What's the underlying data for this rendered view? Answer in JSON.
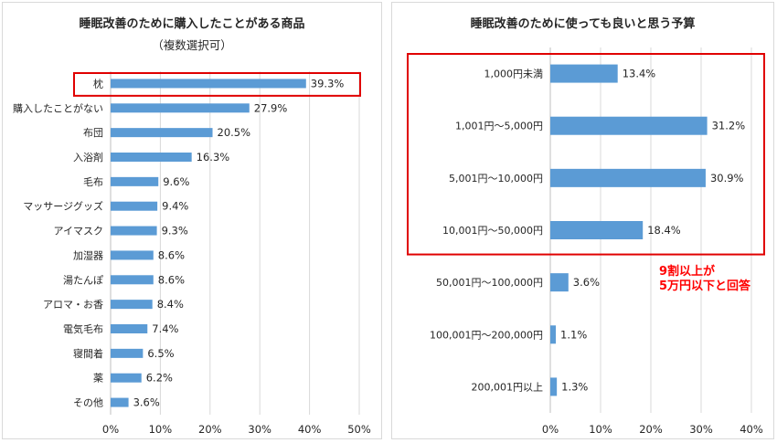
{
  "colors": {
    "bar": "#5b9bd5",
    "grid": "#d9d9d9",
    "highlight": "#e00000"
  },
  "chart_data": [
    {
      "type": "bar",
      "orientation": "horizontal",
      "title": "睡眠改善のために購入したことがある商品",
      "subtitle": "（複数選択可）",
      "categories": [
        "枕",
        "購入したことがない",
        "布団",
        "入浴剤",
        "毛布",
        "マッサージグッズ",
        "アイマスク",
        "加湿器",
        "湯たんぽ",
        "アロマ・お香",
        "電気毛布",
        "寝間着",
        "薬",
        "その他"
      ],
      "values": [
        39.3,
        27.9,
        20.5,
        16.3,
        9.6,
        9.4,
        9.3,
        8.6,
        8.6,
        8.4,
        7.4,
        6.5,
        6.2,
        3.6
      ],
      "value_labels": [
        "39.3%",
        "27.9%",
        "20.5%",
        "16.3%",
        "9.6%",
        "9.4%",
        "9.3%",
        "8.6%",
        "8.6%",
        "8.4%",
        "7.4%",
        "6.5%",
        "6.2%",
        "3.6%"
      ],
      "xlim": [
        0,
        50
      ],
      "xticks": [
        "0%",
        "10%",
        "20%",
        "30%",
        "40%",
        "50%"
      ],
      "grid": true,
      "highlighted_categories": [
        "枕"
      ]
    },
    {
      "type": "bar",
      "orientation": "horizontal",
      "title": "睡眠改善のために使っても良いと思う予算",
      "categories": [
        "1,000円未満",
        "1,001円～5,000円",
        "5,001円～10,000円",
        "10,001円～50,000円",
        "50,001円～100,000円",
        "100,001円～200,000円",
        "200,001円以上"
      ],
      "values": [
        13.4,
        31.2,
        30.9,
        18.4,
        3.6,
        1.1,
        1.3
      ],
      "value_labels": [
        "13.4%",
        "31.2%",
        "30.9%",
        "18.4%",
        "3.6%",
        "1.1%",
        "1.3%"
      ],
      "xlim": [
        0,
        40
      ],
      "xticks": [
        "0%",
        "10%",
        "20%",
        "30%",
        "40%"
      ],
      "grid": true,
      "highlighted_categories": [
        "1,000円未満",
        "1,001円～5,000円",
        "5,001円～10,000円",
        "10,001円～50,000円"
      ],
      "annotation": [
        "9割以上が",
        "5万円以下と回答"
      ]
    }
  ]
}
